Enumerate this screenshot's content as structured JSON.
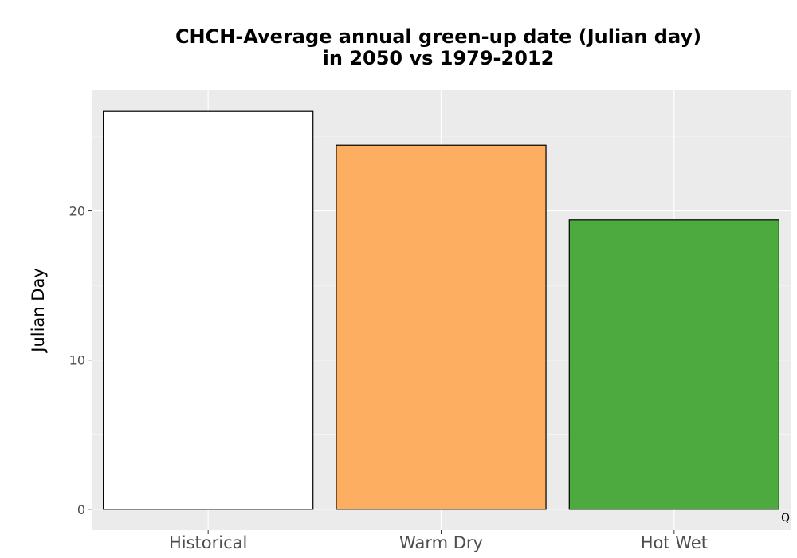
{
  "chart_data": {
    "type": "bar",
    "title": "CHCH-Average annual green-up date (Julian day)\nin 2050 vs 1979-2012",
    "xlabel": "",
    "ylabel": "Julian Day",
    "categories": [
      "Historical",
      "Warm Dry",
      "Hot Wet"
    ],
    "values": [
      26.7,
      24.4,
      19.4
    ],
    "colors": [
      "#ffffff",
      "#fdae61",
      "#4daa3e"
    ],
    "bar_outline": "#000000",
    "panel_background": "#ebebeb",
    "grid": true,
    "ylim": [
      -1.4,
      28.1
    ],
    "yticks": [
      0,
      10,
      20
    ],
    "legend": "none",
    "corner_mark": "Q"
  }
}
